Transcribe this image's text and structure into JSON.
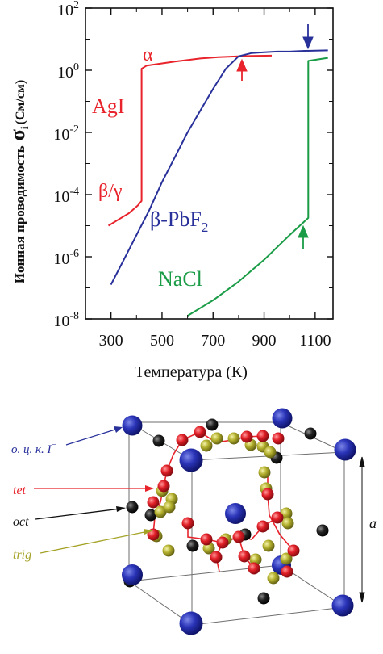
{
  "colors": {
    "red": "#e8232b",
    "blue": "#28309a",
    "green": "#1a9c46",
    "olive": "#a4a224",
    "black": "#111111"
  },
  "chart_data": {
    "type": "line",
    "xlabel": "Температура (К)",
    "ylabel": {
      "prefix": "Ионная проводимость",
      "symbol": "σ",
      "subscript": "i",
      "unit": "(См/см)"
    },
    "xlim": [
      200,
      1170
    ],
    "ylim_exponent": [
      -8,
      2
    ],
    "y_scale": "log",
    "x_ticks": [
      "300",
      "500",
      "700",
      "900",
      "1100"
    ],
    "x_tick_values": [
      300,
      500,
      700,
      900,
      1100
    ],
    "y_ticks": [
      {
        "base": "10",
        "exp": "2",
        "value": 2
      },
      {
        "base": "10",
        "exp": "0",
        "value": 0
      },
      {
        "base": "10",
        "exp": "-2",
        "value": -2
      },
      {
        "base": "10",
        "exp": "-4",
        "value": -4
      },
      {
        "base": "10",
        "exp": "-6",
        "value": -6
      },
      {
        "base": "10",
        "exp": "-8",
        "value": -8
      }
    ],
    "series": [
      {
        "name": "AgI",
        "color": "#e8232b",
        "x": [
          290,
          330,
          370,
          405,
          420,
          420,
          440,
          550,
          650,
          720,
          800,
          850,
          930
        ],
        "log_y": [
          -5.0,
          -4.8,
          -4.6,
          -4.35,
          -4.2,
          0.05,
          0.15,
          0.28,
          0.38,
          0.42,
          0.45,
          0.46,
          0.47
        ]
      },
      {
        "name": "β-PbF2",
        "color": "#28309a",
        "x": [
          300,
          350,
          400,
          450,
          500,
          550,
          600,
          650,
          700,
          750,
          800,
          850,
          900,
          950,
          1000,
          1050,
          1100,
          1150
        ],
        "log_y": [
          -6.9,
          -6.1,
          -5.3,
          -4.5,
          -3.6,
          -2.8,
          -2.0,
          -1.3,
          -0.6,
          0.05,
          0.45,
          0.55,
          0.58,
          0.6,
          0.6,
          0.62,
          0.63,
          0.64
        ]
      },
      {
        "name": "NaCl",
        "color": "#1a9c46",
        "x": [
          600,
          700,
          800,
          900,
          1000,
          1073,
          1073,
          1150
        ],
        "log_y": [
          -7.9,
          -7.4,
          -6.8,
          -6.1,
          -5.3,
          -4.75,
          0.3,
          0.4
        ]
      }
    ],
    "annotations": [
      {
        "id": "alpha",
        "text": "α"
      },
      {
        "id": "agi",
        "text": "AgI"
      },
      {
        "id": "beta_gamma",
        "text": "β/γ"
      },
      {
        "id": "pbf2",
        "text": "β-PbF",
        "sub": "2"
      },
      {
        "id": "nacl",
        "text": "NaCl"
      }
    ]
  },
  "structure": {
    "labels": [
      {
        "id": "bcc",
        "text": "о. ц. к. I",
        "sup": "−",
        "color": "#28309a"
      },
      {
        "id": "tet",
        "text": "tet",
        "color": "#e8232b"
      },
      {
        "id": "oct",
        "text": "oct",
        "color": "#111111"
      },
      {
        "id": "trig",
        "text": "trig",
        "color": "#a4a224"
      },
      {
        "id": "a",
        "text": "a",
        "color": "#111111"
      }
    ]
  }
}
